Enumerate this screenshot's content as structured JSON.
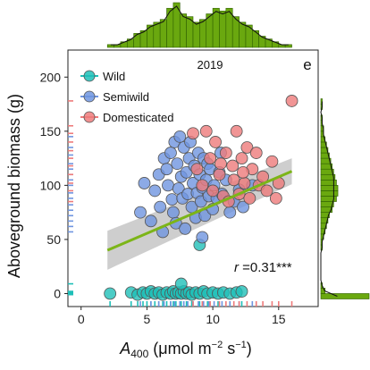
{
  "chart_data": {
    "type": "scatter",
    "panel_label": "e",
    "year_label": "2019",
    "xlabel": {
      "main": "A",
      "sub": "400",
      "unit_open": " (μmol m",
      "sup1": "−2",
      "mid": " s",
      "sup2": "−1",
      "close": ")"
    },
    "ylabel": "Aboveground biomass (g)",
    "xlim": [
      -1,
      18
    ],
    "ylim": [
      -12,
      225
    ],
    "xticks": [
      0,
      5,
      10,
      15
    ],
    "yticks": [
      0,
      50,
      100,
      150,
      200
    ],
    "annotation": {
      "r_prefix": "r",
      "r_value": " =0.31***"
    },
    "colors": {
      "wild": "#1fbfb8",
      "semiwild": "#6f95e0",
      "domesticated": "#ee7b7b",
      "fit_line": "#7cb518",
      "ci_band": "#bdbdbd",
      "hist_bar": "#6aa80f",
      "hist_edge": "#2f5f00"
    },
    "legend": {
      "position": "top-left",
      "entries": [
        {
          "key": "wild",
          "label": "Wild"
        },
        {
          "key": "semiwild",
          "label": "Semiwild"
        },
        {
          "key": "domesticated",
          "label": "Domesticated"
        }
      ]
    },
    "fit": {
      "x": [
        2,
        16
      ],
      "y": [
        40,
        113
      ],
      "ci_lower": [
        22,
        101
      ],
      "ci_upper": [
        58,
        125
      ]
    },
    "series": [
      {
        "name": "Wild",
        "key": "wild",
        "points": [
          [
            2.2,
            0
          ],
          [
            3.8,
            1
          ],
          [
            4.3,
            -1
          ],
          [
            4.7,
            1
          ],
          [
            5.0,
            0
          ],
          [
            5.3,
            2
          ],
          [
            5.6,
            0
          ],
          [
            5.9,
            1
          ],
          [
            6.2,
            -1
          ],
          [
            6.5,
            1
          ],
          [
            6.8,
            0
          ],
          [
            7.0,
            2
          ],
          [
            7.2,
            0
          ],
          [
            7.4,
            1
          ],
          [
            7.6,
            0
          ],
          [
            7.8,
            2
          ],
          [
            8.0,
            0
          ],
          [
            8.2,
            1
          ],
          [
            8.4,
            -1
          ],
          [
            8.7,
            1
          ],
          [
            9.0,
            0
          ],
          [
            9.3,
            2
          ],
          [
            9.6,
            0
          ],
          [
            10.0,
            1
          ],
          [
            10.4,
            0
          ],
          [
            10.8,
            1
          ],
          [
            11.3,
            0
          ],
          [
            11.8,
            1
          ],
          [
            12.2,
            2
          ],
          [
            7.6,
            9
          ],
          [
            9.0,
            45
          ]
        ]
      },
      {
        "name": "Semiwild",
        "key": "semiwild",
        "points": [
          [
            4.5,
            75
          ],
          [
            4.8,
            102
          ],
          [
            5.3,
            67
          ],
          [
            5.6,
            95
          ],
          [
            5.9,
            110
          ],
          [
            6.0,
            80
          ],
          [
            6.2,
            57
          ],
          [
            6.3,
            125
          ],
          [
            6.5,
            115
          ],
          [
            6.6,
            100
          ],
          [
            6.8,
            130
          ],
          [
            6.9,
            87
          ],
          [
            7.0,
            75
          ],
          [
            7.1,
            140
          ],
          [
            7.2,
            65
          ],
          [
            7.3,
            120
          ],
          [
            7.4,
            97
          ],
          [
            7.5,
            145
          ],
          [
            7.6,
            108
          ],
          [
            7.7,
            88
          ],
          [
            7.8,
            135
          ],
          [
            7.9,
            60
          ],
          [
            8.0,
            112
          ],
          [
            8.1,
            92
          ],
          [
            8.2,
            125
          ],
          [
            8.3,
            140
          ],
          [
            8.4,
            80
          ],
          [
            8.5,
            102
          ],
          [
            8.6,
            118
          ],
          [
            8.7,
            70
          ],
          [
            8.8,
            93
          ],
          [
            8.9,
            130
          ],
          [
            9.0,
            110
          ],
          [
            9.1,
            85
          ],
          [
            9.2,
            98
          ],
          [
            9.3,
            125
          ],
          [
            9.4,
            72
          ],
          [
            9.5,
            105
          ],
          [
            9.6,
            120
          ],
          [
            9.7,
            90
          ],
          [
            9.8,
            115
          ],
          [
            10.0,
            78
          ],
          [
            10.1,
            100
          ],
          [
            10.3,
            88
          ],
          [
            10.5,
            112
          ],
          [
            10.7,
            92
          ],
          [
            11.0,
            105
          ],
          [
            11.3,
            75
          ],
          [
            11.6,
            85
          ],
          [
            12.0,
            96
          ],
          [
            12.3,
            80
          ],
          [
            13.0,
            100
          ],
          [
            9.2,
            52
          ],
          [
            10.6,
            130
          ]
        ]
      },
      {
        "name": "Domesticated",
        "key": "domesticated",
        "points": [
          [
            8.5,
            148
          ],
          [
            8.8,
            115
          ],
          [
            9.2,
            100
          ],
          [
            9.5,
            150
          ],
          [
            9.8,
            125
          ],
          [
            10.0,
            95
          ],
          [
            10.2,
            140
          ],
          [
            10.5,
            110
          ],
          [
            10.8,
            90
          ],
          [
            11.0,
            130
          ],
          [
            11.2,
            85
          ],
          [
            11.5,
            118
          ],
          [
            11.6,
            105
          ],
          [
            11.8,
            150
          ],
          [
            12.0,
            92
          ],
          [
            12.2,
            125
          ],
          [
            12.4,
            102
          ],
          [
            12.6,
            135
          ],
          [
            12.8,
            88
          ],
          [
            13.0,
            115
          ],
          [
            13.3,
            130
          ],
          [
            13.5,
            100
          ],
          [
            13.8,
            108
          ],
          [
            14.1,
            95
          ],
          [
            14.5,
            122
          ],
          [
            14.8,
            88
          ],
          [
            15.0,
            102
          ],
          [
            16.0,
            178
          ],
          [
            12.3,
            112
          ],
          [
            10.6,
            120
          ]
        ]
      }
    ],
    "rug_x": {
      "wild": [
        2.2,
        3.8,
        4.3,
        4.7,
        5.0,
        5.3,
        5.6,
        5.9,
        6.2,
        6.5,
        6.8,
        7.0,
        7.2,
        7.6,
        8.0,
        8.4,
        9.0,
        9.6,
        10.4,
        11.3,
        12.2
      ],
      "semiwild": [
        4.5,
        5.3,
        5.9,
        6.3,
        6.8,
        7.1,
        7.5,
        7.8,
        8.1,
        8.5,
        8.9,
        9.3,
        9.7,
        10.1,
        10.7,
        11.3,
        12.0,
        13.0
      ],
      "domesticated": [
        8.5,
        9.2,
        9.8,
        10.5,
        11.0,
        11.6,
        12.0,
        12.6,
        13.3,
        13.8,
        14.5,
        15.0,
        16.0
      ]
    },
    "rug_y": {
      "wild": [
        -1,
        0,
        1,
        2,
        9
      ],
      "semiwild": [
        57,
        62,
        67,
        72,
        77,
        82,
        88,
        93,
        100,
        105,
        110,
        115,
        120,
        128,
        135,
        145
      ],
      "domesticated": [
        85,
        95,
        102,
        110,
        118,
        125,
        132,
        140,
        148,
        155,
        178
      ]
    },
    "hist_x": {
      "edges": [
        2,
        2.5,
        3,
        3.5,
        4,
        4.5,
        5,
        5.5,
        6,
        6.5,
        7,
        7.5,
        8,
        8.5,
        9,
        9.5,
        10,
        10.5,
        11,
        11.5,
        12,
        12.5,
        13,
        13.5,
        14,
        14.5,
        15,
        15.5,
        16
      ],
      "counts": [
        1,
        1,
        2,
        3,
        5,
        6,
        8,
        9,
        10,
        14,
        16,
        12,
        11,
        9,
        10,
        12,
        14,
        13,
        14,
        11,
        9,
        8,
        6,
        4,
        3,
        2,
        1,
        1
      ]
    },
    "hist_y": {
      "edges": [
        -5,
        0,
        5,
        10,
        15,
        20,
        25,
        30,
        35,
        40,
        45,
        50,
        55,
        60,
        65,
        70,
        75,
        80,
        85,
        90,
        95,
        100,
        105,
        110,
        115,
        120,
        125,
        130,
        135,
        140,
        145,
        150,
        155,
        160,
        165,
        170,
        175,
        180
      ],
      "counts": [
        34,
        3,
        1,
        0,
        0,
        0,
        0,
        0,
        0,
        1,
        1,
        2,
        3,
        4,
        5,
        6,
        8,
        9,
        11,
        12,
        12,
        11,
        10,
        9,
        8,
        7,
        6,
        5,
        4,
        3,
        2,
        2,
        1,
        1,
        0,
        1,
        1
      ]
    }
  }
}
